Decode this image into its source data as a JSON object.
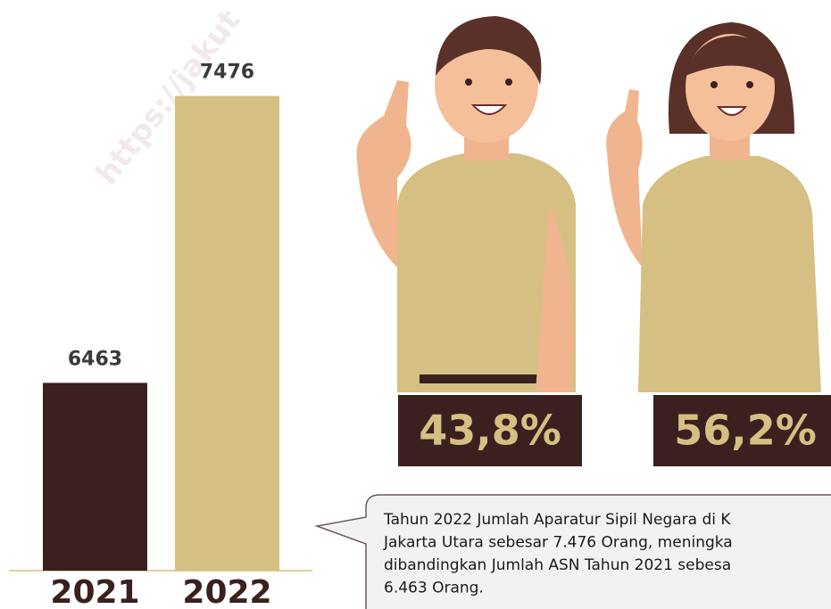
{
  "chart_data": {
    "type": "bar",
    "categories": [
      "2021",
      "2022"
    ],
    "values": [
      6463,
      7476
    ],
    "colors": [
      "#3b2020",
      "#d6bf83"
    ],
    "ylim": [
      5800,
      7500
    ]
  },
  "watermark": "https://jakut",
  "badges": [
    "43,8%",
    "56,2%"
  ],
  "callout": {
    "lines": [
      "Tahun 2022 Jumlah Aparatur Sipil Negara di K",
      "Jakarta Utara sebesar 7.476 Orang, meningka",
      "dibandingkan  Jumlah ASN Tahun 2021 sebesa",
      "6.463 Orang."
    ]
  }
}
